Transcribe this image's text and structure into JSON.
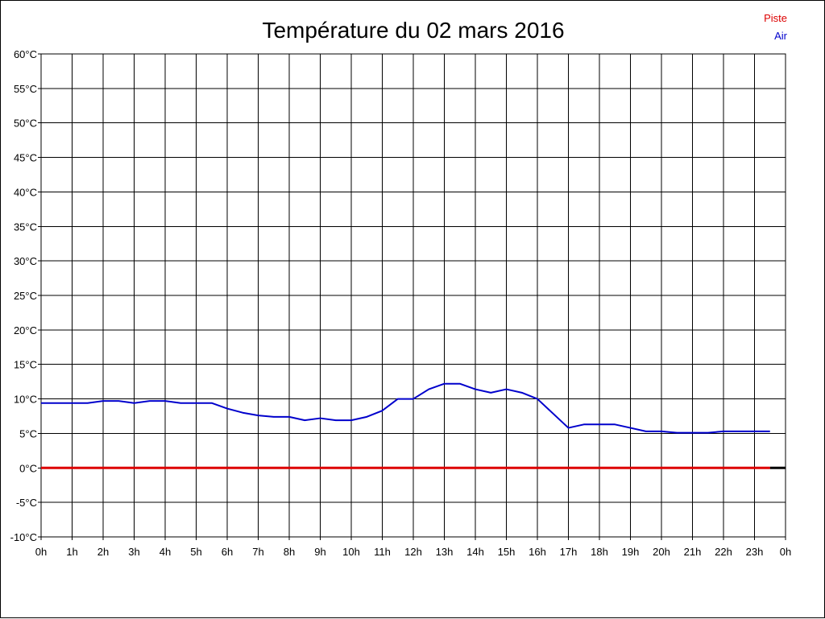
{
  "chart_data": {
    "type": "line",
    "title": "Température du 02 mars 2016",
    "y_ticks": [
      "60°C",
      "55°C",
      "50°C",
      "45°C",
      "40°C",
      "35°C",
      "30°C",
      "25°C",
      "20°C",
      "15°C",
      "10°C",
      "5°C",
      "0°C",
      "-5°C",
      "-10°C"
    ],
    "x_ticks": [
      "0h",
      "1h",
      "2h",
      "3h",
      "4h",
      "5h",
      "6h",
      "7h",
      "8h",
      "9h",
      "10h",
      "11h",
      "12h",
      "13h",
      "14h",
      "15h",
      "16h",
      "17h",
      "18h",
      "19h",
      "20h",
      "21h",
      "22h",
      "23h",
      "0h"
    ],
    "xlim": [
      0,
      24
    ],
    "ylim": [
      -10,
      60
    ],
    "grid": true,
    "legend_position": "top-right",
    "legend": [
      {
        "label": "Piste",
        "color": "#dd0000"
      },
      {
        "label": "Air",
        "color": "#0000cc"
      }
    ],
    "series": [
      {
        "name": "Piste",
        "color": "#dd0000",
        "x": [
          0,
          23.5
        ],
        "y": [
          0,
          0
        ]
      },
      {
        "name": "Air",
        "color": "#0000cc",
        "x": [
          0,
          0.5,
          1,
          1.5,
          2,
          2.5,
          3,
          3.5,
          4,
          4.5,
          5,
          5.5,
          6,
          6.5,
          7,
          7.5,
          8,
          8.5,
          9,
          9.5,
          10,
          10.5,
          11,
          11.5,
          12,
          12.5,
          13,
          13.5,
          14,
          14.5,
          15,
          15.5,
          16,
          16.5,
          17,
          17.5,
          18,
          18.5,
          19,
          19.5,
          20,
          20.5,
          21,
          21.5,
          22,
          22.5,
          23,
          23.5
        ],
        "y": [
          9.4,
          9.4,
          9.4,
          9.4,
          9.7,
          9.7,
          9.4,
          9.7,
          9.7,
          9.4,
          9.4,
          9.4,
          8.6,
          8.0,
          7.6,
          7.4,
          7.4,
          6.9,
          7.2,
          6.9,
          6.9,
          7.4,
          8.3,
          10.0,
          10.0,
          11.4,
          12.2,
          12.2,
          11.4,
          10.9,
          11.4,
          10.9,
          10.0,
          7.9,
          5.8,
          6.3,
          6.3,
          6.3,
          5.8,
          5.3,
          5.3,
          5.1,
          5.1,
          5.1,
          5.3,
          5.3,
          5.3,
          5.3
        ]
      }
    ],
    "baseline_extension": {
      "x": [
        23.5,
        24
      ],
      "y": [
        0,
        0
      ],
      "color": "#000000"
    }
  }
}
